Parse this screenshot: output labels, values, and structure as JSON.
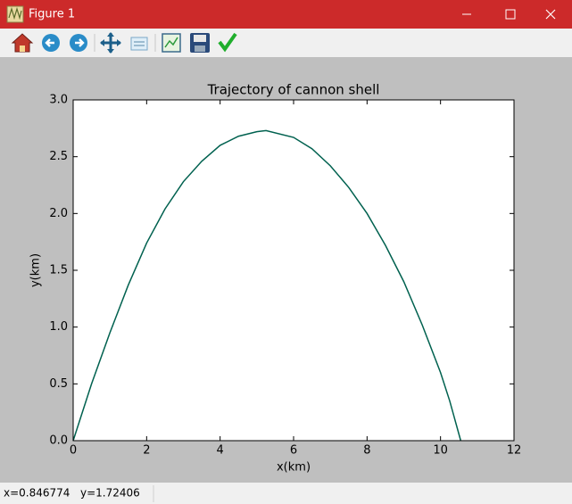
{
  "window": {
    "title": "Figure 1"
  },
  "chart_data": {
    "type": "line",
    "title": "Trajectory of cannon shell",
    "xlabel": "x(km)",
    "ylabel": "y(km)",
    "x": [
      0,
      0.5,
      1,
      1.5,
      2,
      2.5,
      3,
      3.5,
      4,
      4.5,
      5,
      5.25,
      6,
      6.5,
      7,
      7.5,
      8,
      8.5,
      9,
      9.5,
      10,
      10.25,
      10.55
    ],
    "values": [
      0,
      0.5,
      0.95,
      1.37,
      1.74,
      2.04,
      2.28,
      2.46,
      2.6,
      2.68,
      2.72,
      2.73,
      2.67,
      2.57,
      2.42,
      2.23,
      2.0,
      1.72,
      1.4,
      1.02,
      0.6,
      0.35,
      0
    ],
    "color": "#00614f",
    "xlim": [
      0,
      12
    ],
    "xticks": [
      0,
      2,
      4,
      6,
      8,
      10,
      12
    ],
    "ylim": [
      0,
      3
    ],
    "yticks": [
      {
        "value": 0,
        "label": "0.0"
      },
      0.5,
      {
        "value": 1,
        "label": "1.0"
      },
      1.5,
      {
        "value": 2,
        "label": "2.0"
      },
      2.5,
      {
        "value": 3,
        "label": "3.0"
      }
    ]
  },
  "status_bar": {
    "x": "x=0.846774",
    "y": "y=1.72406"
  }
}
